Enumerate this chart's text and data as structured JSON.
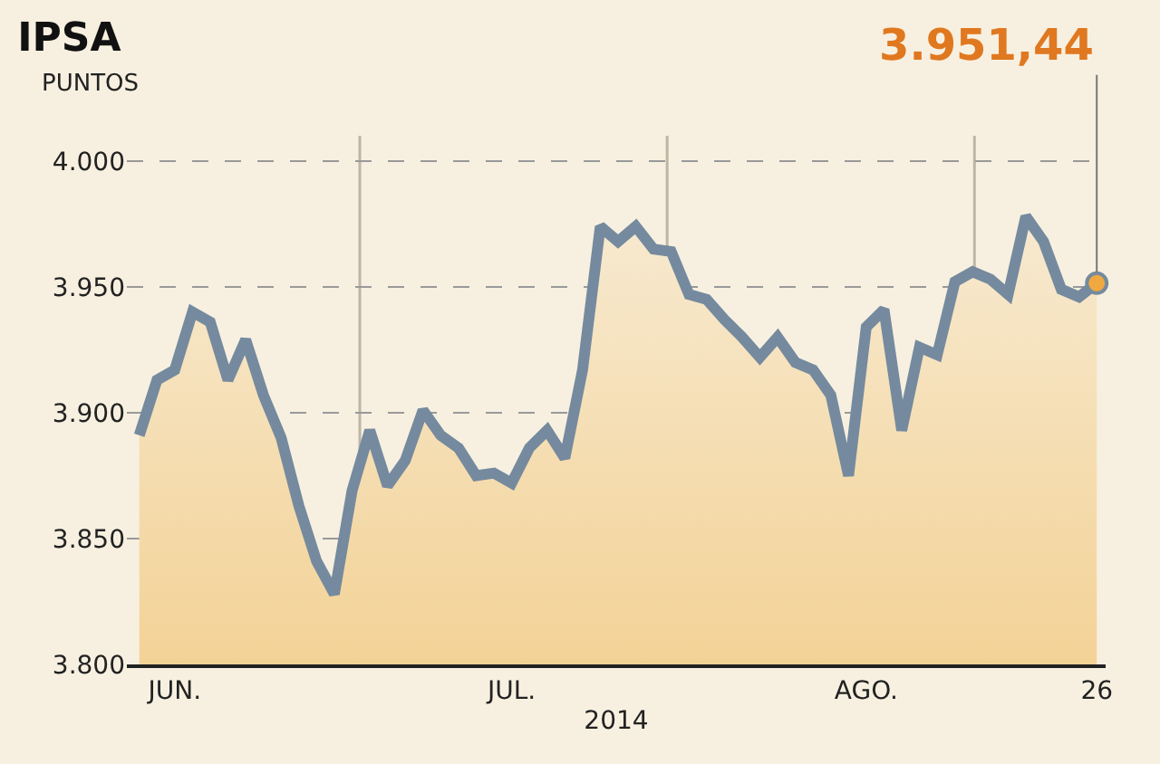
{
  "chart_data": {
    "type": "area",
    "title": "IPSA",
    "ylabel": "PUNTOS",
    "xlabel": "2014",
    "categories": [
      null,
      null,
      "JUN.",
      null,
      null,
      null,
      null,
      null,
      null,
      null,
      null,
      null,
      null,
      null,
      null,
      null,
      null,
      null,
      null,
      null,
      null,
      "JUL.",
      null,
      null,
      null,
      null,
      null,
      null,
      null,
      null,
      null,
      null,
      null,
      null,
      null,
      null,
      null,
      null,
      null,
      null,
      null,
      "AGO.",
      null,
      null,
      null,
      null,
      null,
      null,
      null,
      null,
      null,
      null,
      null,
      null,
      "26"
    ],
    "series": [
      {
        "color": "#758a9e",
        "values": [
          3891,
          3913,
          3917,
          3940,
          3936,
          3913,
          3929,
          3907,
          3890,
          3863,
          3841,
          3828,
          3869,
          3893,
          3871,
          3881,
          3901,
          3891,
          3886,
          3875,
          3876,
          3872,
          3886,
          3893,
          3882,
          3917,
          3974,
          3968,
          3974,
          3965,
          3964,
          3947,
          3945,
          3937,
          3930,
          3922,
          3930,
          3920,
          3917,
          3907,
          3875,
          3934,
          3941,
          3893,
          3926,
          3923,
          3952,
          3956,
          3953,
          3947,
          3978,
          3968,
          3949,
          3946,
          3951.44
        ]
      }
    ],
    "ylim": [
      3800,
      4010
    ],
    "yticks": [
      {
        "value": 3800,
        "label": "3.800"
      },
      {
        "value": 3850,
        "label": "3.850"
      },
      {
        "value": 3900,
        "label": "3.900"
      },
      {
        "value": 3950,
        "label": "3.950"
      },
      {
        "value": 4000,
        "label": "4.000"
      }
    ],
    "annotations": [
      {
        "text": "3.951,44",
        "x": "26",
        "y": 3951.44
      }
    ],
    "grid": "y",
    "marker": "none",
    "line_style": "solid"
  }
}
